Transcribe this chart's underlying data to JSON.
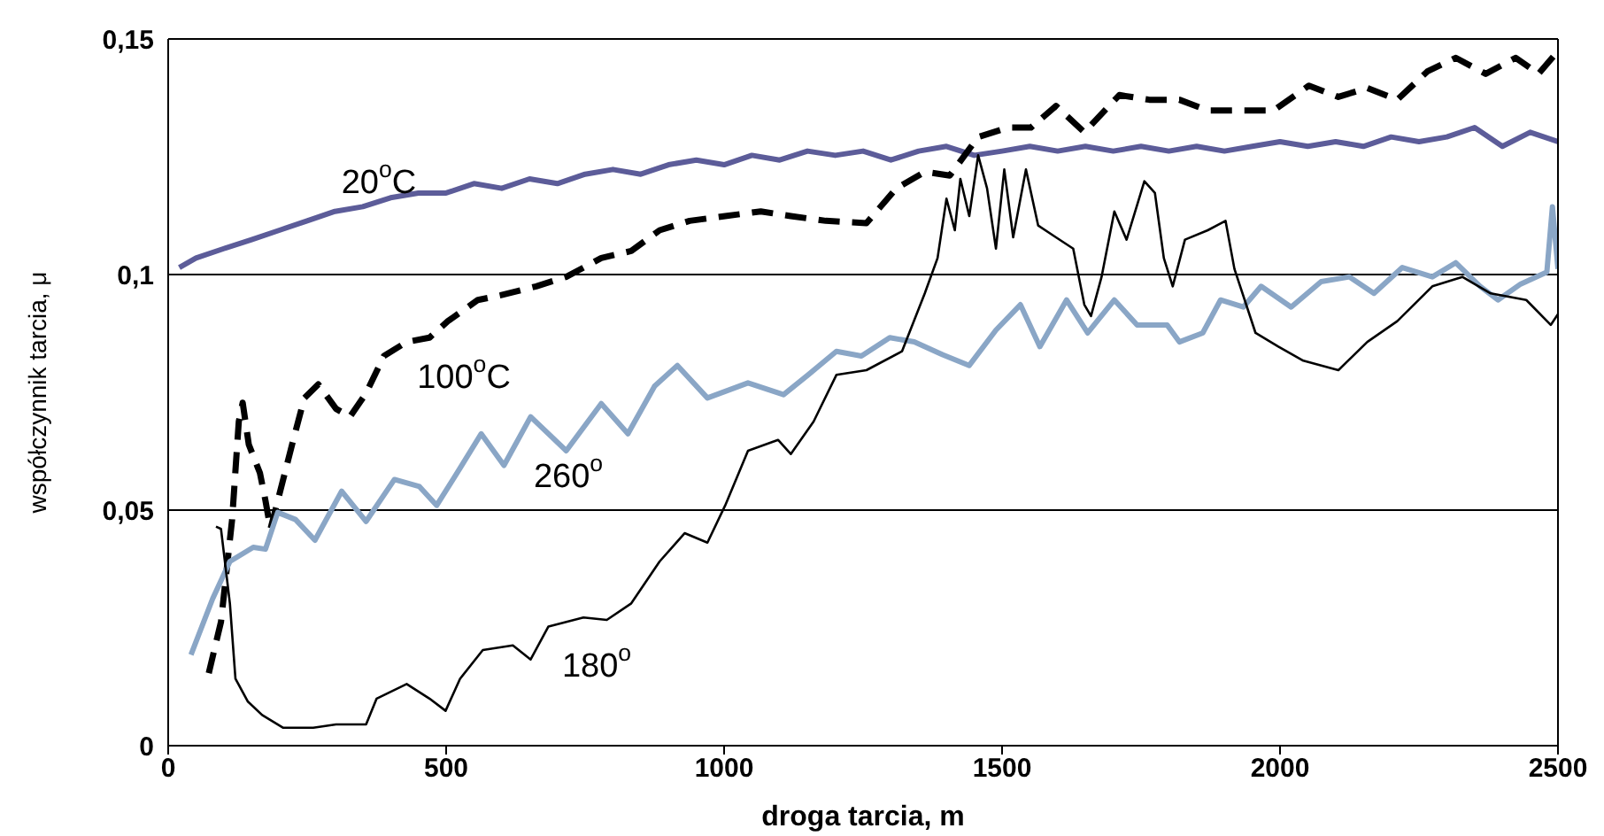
{
  "chart_data": {
    "type": "line",
    "xlabel": "droga tarcia, m",
    "ylabel": "współczynnik tarcia, μ",
    "xlim": [
      0,
      2500
    ],
    "xticks": [
      0,
      500,
      1000,
      1500,
      2000,
      2500
    ],
    "ylim": [
      0,
      0.15
    ],
    "yticks": [
      0,
      {
        "value": 0.05,
        "label": "0,05"
      },
      {
        "value": 0.1,
        "label": "0,1"
      },
      {
        "value": 0.15,
        "label": "0,15"
      }
    ],
    "grid": "y",
    "marker": "none",
    "annotations": [
      "20$^{o}$C",
      "100$^{o}$C",
      "260$^{o}$",
      "180$^{o}$"
    ],
    "series": [
      {
        "color": "#5c5c99",
        "line_style": "solid",
        "x": [
          20,
          50,
          100,
          150,
          200,
          250,
          300,
          350,
          400,
          450,
          500,
          550,
          600,
          650,
          700,
          750,
          800,
          850,
          900,
          950,
          1000,
          1050,
          1100,
          1150,
          1200,
          1250,
          1300,
          1350,
          1400,
          1450,
          1500,
          1550,
          1600,
          1650,
          1700,
          1750,
          1800,
          1850,
          1900,
          1950,
          2000,
          2050,
          2100,
          2150,
          2200,
          2250,
          2300,
          2350,
          2400,
          2450,
          2500
        ],
        "values": [
          0.1015,
          0.1035,
          0.1055,
          0.1074,
          0.1094,
          0.1114,
          0.1134,
          0.1144,
          0.1163,
          0.1173,
          0.1173,
          0.1193,
          0.1183,
          0.1203,
          0.1193,
          0.1213,
          0.1223,
          0.1213,
          0.1233,
          0.1243,
          0.1233,
          0.1253,
          0.1243,
          0.1262,
          0.1253,
          0.1262,
          0.1243,
          0.1262,
          0.1272,
          0.1253,
          0.1262,
          0.1272,
          0.1262,
          0.1272,
          0.1262,
          0.1272,
          0.1262,
          0.1272,
          0.1262,
          0.1272,
          0.1282,
          0.1272,
          0.1282,
          0.1272,
          0.1292,
          0.1282,
          0.1292,
          0.1312,
          0.1272,
          0.1302,
          0.1282
        ]
      },
      {
        "color": "#000000",
        "line_style": "dashed",
        "x": [
          73,
          95,
          115,
          127,
          134,
          145,
          165,
          175,
          184,
          195,
          225,
          245,
          270,
          302,
          327,
          356,
          388,
          429,
          470,
          503,
          557,
          598,
          662,
          716,
          779,
          833,
          884,
          938,
          1002,
          1066,
          1120,
          1183,
          1256,
          1310,
          1361,
          1406,
          1457,
          1511,
          1552,
          1597,
          1648,
          1711,
          1765,
          1819,
          1870,
          1934,
          1988,
          2052,
          2105,
          2157,
          2211,
          2265,
          2316,
          2370,
          2424,
          2465,
          2497
        ],
        "values": [
          0.0154,
          0.0263,
          0.048,
          0.0688,
          0.0728,
          0.0639,
          0.0579,
          0.052,
          0.046,
          0.051,
          0.0649,
          0.0738,
          0.0767,
          0.0715,
          0.0698,
          0.0748,
          0.0827,
          0.0857,
          0.0866,
          0.0901,
          0.0946,
          0.0956,
          0.0975,
          0.0995,
          0.1035,
          0.105,
          0.1094,
          0.1114,
          0.1124,
          0.1134,
          0.1124,
          0.1114,
          0.1109,
          0.1183,
          0.1218,
          0.121,
          0.1292,
          0.1312,
          0.1312,
          0.1358,
          0.1302,
          0.1381,
          0.1371,
          0.1371,
          0.1348,
          0.1348,
          0.1348,
          0.1401,
          0.1377,
          0.1396,
          0.1371,
          0.1431,
          0.146,
          0.1426,
          0.146,
          0.1426,
          0.147
        ]
      },
      {
        "color": "#8aa6c6",
        "line_style": "solid",
        "x": [
          41,
          80,
          111,
          153,
          175,
          197,
          229,
          264,
          312,
          356,
          407,
          452,
          483,
          525,
          563,
          604,
          652,
          716,
          779,
          827,
          875,
          916,
          970,
          1043,
          1107,
          1151,
          1202,
          1247,
          1298,
          1342,
          1393,
          1441,
          1489,
          1533,
          1568,
          1616,
          1654,
          1702,
          1743,
          1797,
          1819,
          1861,
          1893,
          1934,
          1966,
          2020,
          2074,
          2125,
          2169,
          2220,
          2274,
          2316,
          2360,
          2392,
          2433,
          2480,
          2490,
          2500
        ],
        "values": [
          0.0193,
          0.0312,
          0.0391,
          0.0421,
          0.0417,
          0.0495,
          0.048,
          0.0436,
          0.054,
          0.0476,
          0.0565,
          0.055,
          0.051,
          0.0589,
          0.0662,
          0.0595,
          0.0698,
          0.0626,
          0.0726,
          0.0662,
          0.0763,
          0.0807,
          0.0738,
          0.077,
          0.0745,
          0.0787,
          0.0837,
          0.0827,
          0.0866,
          0.0857,
          0.083,
          0.0807,
          0.0882,
          0.0936,
          0.0847,
          0.0946,
          0.0876,
          0.0946,
          0.0893,
          0.0893,
          0.0857,
          0.0876,
          0.0946,
          0.0931,
          0.0975,
          0.0931,
          0.0985,
          0.0995,
          0.096,
          0.1015,
          0.0995,
          0.1025,
          0.0975,
          0.0946,
          0.098,
          0.1005,
          0.1144,
          0.1012
        ]
      },
      {
        "color": "#000000",
        "line_style": "solid",
        "x": [
          86,
          95,
          111,
          121,
          143,
          169,
          207,
          261,
          302,
          356,
          375,
          429,
          470,
          499,
          525,
          566,
          620,
          652,
          684,
          747,
          789,
          833,
          884,
          929,
          970,
          1002,
          1043,
          1097,
          1120,
          1161,
          1202,
          1256,
          1320,
          1361,
          1384,
          1400,
          1415,
          1425,
          1441,
          1457,
          1473,
          1489,
          1504,
          1520,
          1543,
          1565,
          1597,
          1628,
          1648,
          1660,
          1679,
          1702,
          1724,
          1756,
          1775,
          1791,
          1807,
          1829,
          1870,
          1902,
          1918,
          1956,
          1997,
          2042,
          2105,
          2157,
          2211,
          2274,
          2328,
          2379,
          2443,
          2487,
          2500
        ],
        "values": [
          0.0465,
          0.046,
          0.0302,
          0.0142,
          0.0094,
          0.0065,
          0.0038,
          0.0038,
          0.0045,
          0.0045,
          0.01,
          0.0131,
          0.01,
          0.0074,
          0.0142,
          0.0203,
          0.0213,
          0.0183,
          0.0253,
          0.0272,
          0.0267,
          0.0302,
          0.0391,
          0.0451,
          0.0431,
          0.051,
          0.0626,
          0.0649,
          0.0619,
          0.0688,
          0.0787,
          0.0797,
          0.0837,
          0.096,
          0.1035,
          0.1161,
          0.1094,
          0.1203,
          0.1124,
          0.1253,
          0.1183,
          0.1055,
          0.1223,
          0.1079,
          0.1223,
          0.1104,
          0.1079,
          0.1055,
          0.0936,
          0.0912,
          0.0995,
          0.1134,
          0.1074,
          0.1198,
          0.1173,
          0.1035,
          0.0975,
          0.1074,
          0.1094,
          0.1114,
          0.1012,
          0.0876,
          0.0847,
          0.0817,
          0.0797,
          0.0857,
          0.0901,
          0.0975,
          0.0995,
          0.096,
          0.0946,
          0.0893,
          0.0916
        ]
      }
    ]
  }
}
